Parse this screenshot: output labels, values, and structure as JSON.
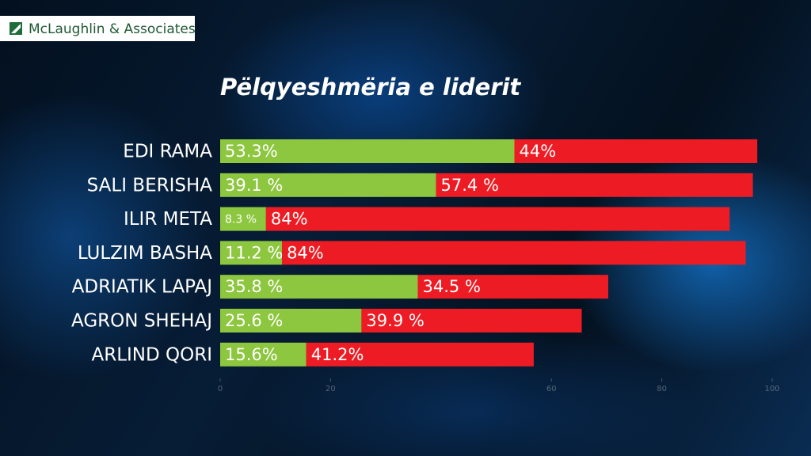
{
  "logo": "McLaughlin & Associates",
  "chart_data": {
    "type": "stacked-bar-horizontal",
    "title": "Pëlqyeshmëria e liderit",
    "categories": [
      "EDI RAMA",
      "SALI BERISHA",
      "ILIR META",
      "LULZIM BASHA",
      "ADRIATIK LAPAJ",
      "AGRON SHEHAJ",
      "ARLIND QORI"
    ],
    "series": [
      {
        "color": "#8dc63f",
        "values": [
          53.3,
          39.1,
          8.3,
          11.2,
          35.8,
          25.6,
          15.6
        ],
        "value_labels": [
          "53.3%",
          "39.1 %",
          "8.3 %",
          "11.2 %",
          "35.8 %",
          "25.6 %",
          "15.6%"
        ]
      },
      {
        "color": "#ed1c24",
        "values": [
          44,
          57.4,
          84,
          84,
          34.5,
          39.9,
          41.2
        ],
        "value_labels": [
          "44%",
          "57.4 %",
          "84%",
          "84%",
          "34.5 %",
          "39.9 %",
          "41.2%"
        ]
      }
    ],
    "xlim": [
      0,
      100
    ],
    "xticks": [
      0,
      20,
      60,
      80,
      100
    ]
  }
}
